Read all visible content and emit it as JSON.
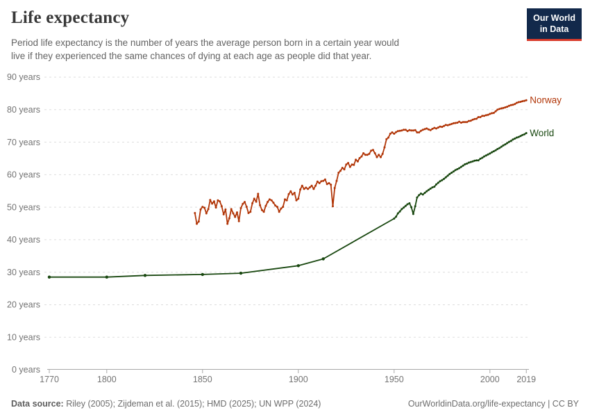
{
  "header": {
    "title": "Life expectancy",
    "subtitle": "Period life expectancy is the number of years the average person born in a certain year would live if they experienced the same chances of dying at each age as people did that year.",
    "logo": {
      "line1": "Our World",
      "line2": "in Data"
    }
  },
  "footer": {
    "source_label": "Data source:",
    "source_text": " Riley (2005); Zijdeman et al. (2015); HMD (2025); UN WPP (2024)",
    "credit_text": "OurWorldinData.org/life-expectancy | CC BY"
  },
  "colors": {
    "norway": "#B13507",
    "world": "#18470F",
    "logo_bg": "#12294B",
    "logo_accent": "#D93B2B",
    "grid": "#DDDDDD",
    "axis": "#A8A8A8",
    "tick_text": "#737373"
  },
  "chart_data": {
    "type": "line",
    "title": "Life expectancy",
    "xlabel": "",
    "ylabel": "",
    "xlim": [
      1770,
      2019
    ],
    "ylim": [
      0,
      90
    ],
    "grid": "horizontal-dashed",
    "legend_position": "end-of-line-labels",
    "yticks": [
      {
        "value": 0,
        "label": "0 years"
      },
      {
        "value": 10,
        "label": "10 years"
      },
      {
        "value": 20,
        "label": "20 years"
      },
      {
        "value": 30,
        "label": "30 years"
      },
      {
        "value": 40,
        "label": "40 years"
      },
      {
        "value": 50,
        "label": "50 years"
      },
      {
        "value": 60,
        "label": "60 years"
      },
      {
        "value": 70,
        "label": "70 years"
      },
      {
        "value": 80,
        "label": "80 years"
      },
      {
        "value": 90,
        "label": "90 years"
      }
    ],
    "xticks": [
      {
        "value": 1770,
        "label": "1770"
      },
      {
        "value": 1800,
        "label": "1800"
      },
      {
        "value": 1850,
        "label": "1850"
      },
      {
        "value": 1900,
        "label": "1900"
      },
      {
        "value": 1950,
        "label": "1950"
      },
      {
        "value": 2000,
        "label": "2000"
      },
      {
        "value": 2019,
        "label": "2019"
      }
    ],
    "series": [
      {
        "name": "Norway",
        "color": "#B13507",
        "points": [
          [
            1846,
            48.2
          ],
          [
            1847,
            44.9
          ],
          [
            1848,
            45.6
          ],
          [
            1849,
            49.3
          ],
          [
            1850,
            50.1
          ],
          [
            1851,
            49.8
          ],
          [
            1852,
            48.1
          ],
          [
            1853,
            49.4
          ],
          [
            1854,
            52.2
          ],
          [
            1855,
            51.1
          ],
          [
            1856,
            51.8
          ],
          [
            1857,
            49.9
          ],
          [
            1858,
            52.1
          ],
          [
            1859,
            51.8
          ],
          [
            1860,
            50.3
          ],
          [
            1861,
            47.8
          ],
          [
            1862,
            49.3
          ],
          [
            1863,
            44.9
          ],
          [
            1864,
            46.6
          ],
          [
            1865,
            49.4
          ],
          [
            1866,
            48.1
          ],
          [
            1867,
            47.0
          ],
          [
            1868,
            48.4
          ],
          [
            1869,
            45.7
          ],
          [
            1870,
            49.7
          ],
          [
            1871,
            51.0
          ],
          [
            1872,
            51.6
          ],
          [
            1873,
            50.1
          ],
          [
            1874,
            48.2
          ],
          [
            1875,
            48.6
          ],
          [
            1876,
            51.2
          ],
          [
            1877,
            52.6
          ],
          [
            1878,
            51.7
          ],
          [
            1879,
            54.1
          ],
          [
            1880,
            50.6
          ],
          [
            1881,
            49.1
          ],
          [
            1882,
            48.6
          ],
          [
            1883,
            50.4
          ],
          [
            1884,
            51.6
          ],
          [
            1885,
            52.4
          ],
          [
            1886,
            52.1
          ],
          [
            1887,
            51.4
          ],
          [
            1888,
            50.5
          ],
          [
            1889,
            50.1
          ],
          [
            1890,
            48.6
          ],
          [
            1891,
            49.6
          ],
          [
            1892,
            50.1
          ],
          [
            1893,
            52.4
          ],
          [
            1894,
            52.1
          ],
          [
            1895,
            54.0
          ],
          [
            1896,
            54.9
          ],
          [
            1897,
            53.9
          ],
          [
            1898,
            54.4
          ],
          [
            1899,
            52.1
          ],
          [
            1900,
            52.6
          ],
          [
            1901,
            55.4
          ],
          [
            1902,
            56.6
          ],
          [
            1903,
            55.6
          ],
          [
            1904,
            56.0
          ],
          [
            1905,
            55.6
          ],
          [
            1906,
            56.1
          ],
          [
            1907,
            56.6
          ],
          [
            1908,
            55.6
          ],
          [
            1909,
            56.6
          ],
          [
            1910,
            57.9
          ],
          [
            1911,
            57.4
          ],
          [
            1912,
            58.0
          ],
          [
            1913,
            58.1
          ],
          [
            1914,
            58.5
          ],
          [
            1915,
            57.1
          ],
          [
            1916,
            57.4
          ],
          [
            1917,
            56.9
          ],
          [
            1918,
            50.3
          ],
          [
            1919,
            55.9
          ],
          [
            1920,
            58.1
          ],
          [
            1921,
            60.6
          ],
          [
            1922,
            61.2
          ],
          [
            1923,
            62.1
          ],
          [
            1924,
            61.6
          ],
          [
            1925,
            63.1
          ],
          [
            1926,
            63.6
          ],
          [
            1927,
            62.4
          ],
          [
            1928,
            63.1
          ],
          [
            1929,
            63.0
          ],
          [
            1930,
            64.6
          ],
          [
            1931,
            64.1
          ],
          [
            1932,
            65.1
          ],
          [
            1933,
            65.6
          ],
          [
            1934,
            66.6
          ],
          [
            1935,
            66.1
          ],
          [
            1936,
            66.1
          ],
          [
            1937,
            66.4
          ],
          [
            1938,
            67.4
          ],
          [
            1939,
            67.6
          ],
          [
            1940,
            66.6
          ],
          [
            1941,
            65.4
          ],
          [
            1942,
            66.1
          ],
          [
            1943,
            65.4
          ],
          [
            1944,
            66.4
          ],
          [
            1945,
            68.4
          ],
          [
            1946,
            70.9
          ],
          [
            1947,
            71.4
          ],
          [
            1948,
            72.6
          ],
          [
            1949,
            73.0
          ],
          [
            1950,
            72.6
          ],
          [
            1951,
            73.1
          ],
          [
            1952,
            73.4
          ],
          [
            1953,
            73.5
          ],
          [
            1954,
            73.6
          ],
          [
            1955,
            73.8
          ],
          [
            1956,
            73.8
          ],
          [
            1957,
            73.4
          ],
          [
            1958,
            73.7
          ],
          [
            1959,
            73.6
          ],
          [
            1960,
            73.6
          ],
          [
            1961,
            73.7
          ],
          [
            1962,
            73.0
          ],
          [
            1963,
            73.0
          ],
          [
            1964,
            73.5
          ],
          [
            1965,
            73.8
          ],
          [
            1966,
            74.0
          ],
          [
            1967,
            74.2
          ],
          [
            1968,
            73.9
          ],
          [
            1969,
            73.7
          ],
          [
            1970,
            74.1
          ],
          [
            1971,
            74.4
          ],
          [
            1972,
            74.2
          ],
          [
            1973,
            74.5
          ],
          [
            1974,
            74.8
          ],
          [
            1975,
            74.7
          ],
          [
            1976,
            75.0
          ],
          [
            1977,
            75.3
          ],
          [
            1978,
            75.2
          ],
          [
            1979,
            75.4
          ],
          [
            1980,
            75.6
          ],
          [
            1981,
            75.8
          ],
          [
            1982,
            75.9
          ],
          [
            1983,
            76.0
          ],
          [
            1984,
            76.3
          ],
          [
            1985,
            76.0
          ],
          [
            1986,
            76.2
          ],
          [
            1987,
            76.2
          ],
          [
            1988,
            76.2
          ],
          [
            1989,
            76.5
          ],
          [
            1990,
            76.6
          ],
          [
            1991,
            76.9
          ],
          [
            1992,
            77.1
          ],
          [
            1993,
            77.2
          ],
          [
            1994,
            77.7
          ],
          [
            1995,
            77.7
          ],
          [
            1996,
            78.1
          ],
          [
            1997,
            78.1
          ],
          [
            1998,
            78.3
          ],
          [
            1999,
            78.4
          ],
          [
            2000,
            78.7
          ],
          [
            2001,
            78.9
          ],
          [
            2002,
            79.0
          ],
          [
            2003,
            79.5
          ],
          [
            2004,
            80.0
          ],
          [
            2005,
            80.2
          ],
          [
            2006,
            80.4
          ],
          [
            2007,
            80.5
          ],
          [
            2008,
            80.7
          ],
          [
            2009,
            80.9
          ],
          [
            2010,
            81.2
          ],
          [
            2011,
            81.4
          ],
          [
            2012,
            81.5
          ],
          [
            2013,
            81.7
          ],
          [
            2014,
            82.1
          ],
          [
            2015,
            82.3
          ],
          [
            2016,
            82.4
          ],
          [
            2017,
            82.6
          ],
          [
            2018,
            82.7
          ],
          [
            2019,
            82.9
          ]
        ]
      },
      {
        "name": "World",
        "color": "#18470F",
        "points": [
          [
            1770,
            28.5
          ],
          [
            1800,
            28.5
          ],
          [
            1820,
            29.0
          ],
          [
            1850,
            29.3
          ],
          [
            1870,
            29.7
          ],
          [
            1900,
            32.0
          ],
          [
            1913,
            34.1
          ],
          [
            1950,
            46.5
          ],
          [
            1951,
            47.1
          ],
          [
            1952,
            48.1
          ],
          [
            1953,
            48.7
          ],
          [
            1954,
            49.4
          ],
          [
            1955,
            49.9
          ],
          [
            1956,
            50.4
          ],
          [
            1957,
            50.9
          ],
          [
            1958,
            51.2
          ],
          [
            1959,
            50.0
          ],
          [
            1960,
            47.9
          ],
          [
            1961,
            50.3
          ],
          [
            1962,
            53.0
          ],
          [
            1963,
            53.7
          ],
          [
            1964,
            54.2
          ],
          [
            1965,
            53.9
          ],
          [
            1966,
            54.4
          ],
          [
            1967,
            54.9
          ],
          [
            1968,
            55.3
          ],
          [
            1969,
            55.7
          ],
          [
            1970,
            56.1
          ],
          [
            1971,
            56.3
          ],
          [
            1972,
            57.0
          ],
          [
            1973,
            57.5
          ],
          [
            1974,
            58.0
          ],
          [
            1975,
            58.3
          ],
          [
            1976,
            58.7
          ],
          [
            1977,
            59.2
          ],
          [
            1978,
            59.7
          ],
          [
            1979,
            60.2
          ],
          [
            1980,
            60.6
          ],
          [
            1981,
            61.0
          ],
          [
            1982,
            61.4
          ],
          [
            1983,
            61.7
          ],
          [
            1984,
            62.0
          ],
          [
            1985,
            62.4
          ],
          [
            1986,
            62.8
          ],
          [
            1987,
            63.2
          ],
          [
            1988,
            63.4
          ],
          [
            1989,
            63.7
          ],
          [
            1990,
            63.9
          ],
          [
            1991,
            64.1
          ],
          [
            1992,
            64.3
          ],
          [
            1993,
            64.4
          ],
          [
            1994,
            64.4
          ],
          [
            1995,
            64.9
          ],
          [
            1996,
            65.2
          ],
          [
            1997,
            65.6
          ],
          [
            1998,
            65.9
          ],
          [
            1999,
            66.2
          ],
          [
            2000,
            66.5
          ],
          [
            2001,
            66.9
          ],
          [
            2002,
            67.2
          ],
          [
            2003,
            67.5
          ],
          [
            2004,
            67.9
          ],
          [
            2005,
            68.2
          ],
          [
            2006,
            68.6
          ],
          [
            2007,
            69.0
          ],
          [
            2008,
            69.3
          ],
          [
            2009,
            69.7
          ],
          [
            2010,
            70.1
          ],
          [
            2011,
            70.4
          ],
          [
            2012,
            70.8
          ],
          [
            2013,
            71.1
          ],
          [
            2014,
            71.4
          ],
          [
            2015,
            71.6
          ],
          [
            2016,
            71.9
          ],
          [
            2017,
            72.2
          ],
          [
            2018,
            72.4
          ],
          [
            2019,
            72.8
          ]
        ]
      }
    ]
  }
}
